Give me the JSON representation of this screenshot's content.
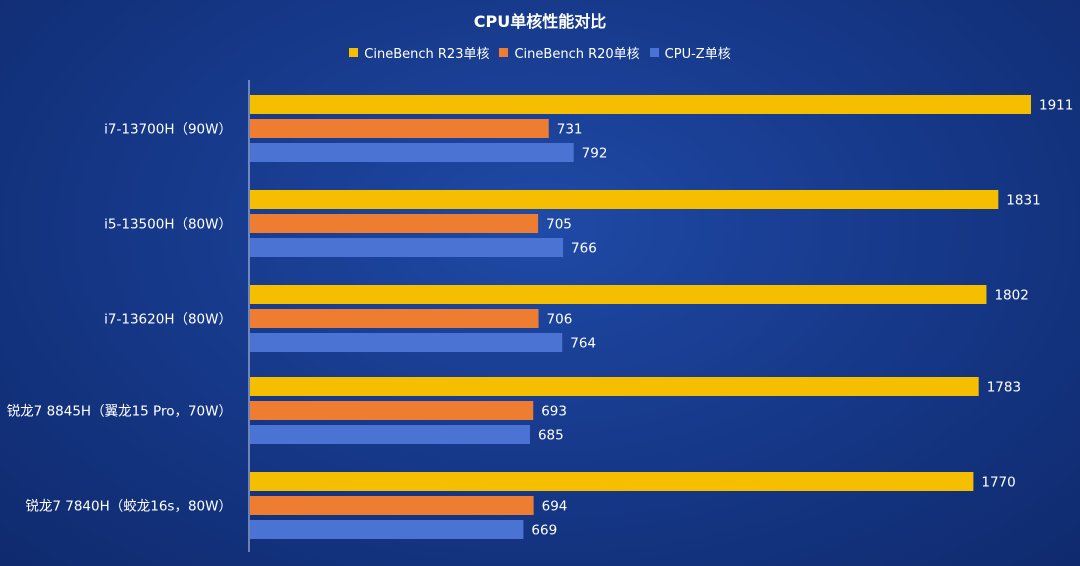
{
  "chart_data": {
    "type": "bar",
    "orientation": "horizontal",
    "title": "CPU单核性能对比",
    "categories": [
      "i7-13700H（90W）",
      "i5-13500H（80W）",
      "i7-13620H（80W）",
      "锐龙7 8845H（翼龙15 Pro，70W）",
      "锐龙7 7840H（蛟龙16s，80W）"
    ],
    "series": [
      {
        "name": "CineBench R23单核",
        "color": "#f5bf00",
        "values": [
          1911,
          1831,
          1802,
          1783,
          1770
        ]
      },
      {
        "name": "CineBench R20单核",
        "color": "#ef7d31",
        "values": [
          731,
          705,
          706,
          693,
          694
        ]
      },
      {
        "name": "CPU-Z单核",
        "color": "#4a73d4",
        "values": [
          792,
          766,
          764,
          685,
          669
        ]
      }
    ],
    "xlim": [
      0,
      1911
    ],
    "legend_position": "top",
    "grid": false
  }
}
